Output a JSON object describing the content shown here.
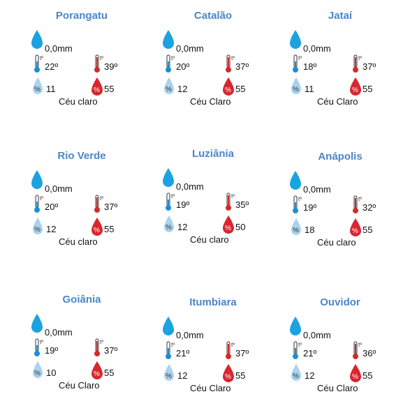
{
  "cities": [
    {
      "name": "Porangatu",
      "rain": "0,0mm",
      "tmin": "22º",
      "tmax": "39º",
      "hmin": "11",
      "hmax": "55",
      "sky": "Céu claro"
    },
    {
      "name": "Catalão",
      "rain": "0,0mm",
      "tmin": "20º",
      "tmax": "37º",
      "hmin": "12",
      "hmax": "55",
      "sky": "Céu Claro"
    },
    {
      "name": "Jataí",
      "rain": "0,0mm",
      "tmin": "18º",
      "tmax": "37º",
      "hmin": "11",
      "hmax": "55",
      "sky": "Céu Claro"
    },
    {
      "name": "Rio Verde",
      "rain": "0,0mm",
      "tmin": "20º",
      "tmax": "37º",
      "hmin": "12",
      "hmax": "55",
      "sky": "Céu claro"
    },
    {
      "name": "Luziânia",
      "rain": "0,0mm",
      "tmin": "19º",
      "tmax": "35º",
      "hmin": "12",
      "hmax": "50",
      "sky": "Céu claro"
    },
    {
      "name": "Anápolis",
      "rain": "0,0mm",
      "tmin": "19º",
      "tmax": "32º",
      "hmin": "18",
      "hmax": "55",
      "sky": "Céu claro"
    },
    {
      "name": "Goiânia",
      "rain": "0,0mm",
      "tmin": "19º",
      "tmax": "37º",
      "hmin": "10",
      "hmax": "55",
      "sky": "Céu Claro"
    },
    {
      "name": "Itumbiara",
      "rain": "0,0mm",
      "tmin": "21º",
      "tmax": "37º",
      "hmin": "12",
      "hmax": "55",
      "sky": "Céu Claro"
    },
    {
      "name": "Ouvidor",
      "rain": "0,0mm",
      "tmin": "21º",
      "tmax": "36º",
      "hmin": "12",
      "hmax": "55",
      "sky": "Céu Claro"
    }
  ],
  "icons": {
    "rain": "rain-drop-icon",
    "tmin": "thermometer-cold-icon",
    "tmax": "thermometer-hot-icon",
    "hmin": "humidity-min-icon",
    "hmax": "humidity-max-icon"
  },
  "colors": {
    "title": "#4a86c8",
    "rain_drop": "#1aa3e0",
    "cold": "#1a8fd6",
    "hot": "#d42a2a",
    "humidity_low": "#a9d3ee",
    "humidity_high": "#d8262f"
  },
  "thermometer_label": "tº"
}
